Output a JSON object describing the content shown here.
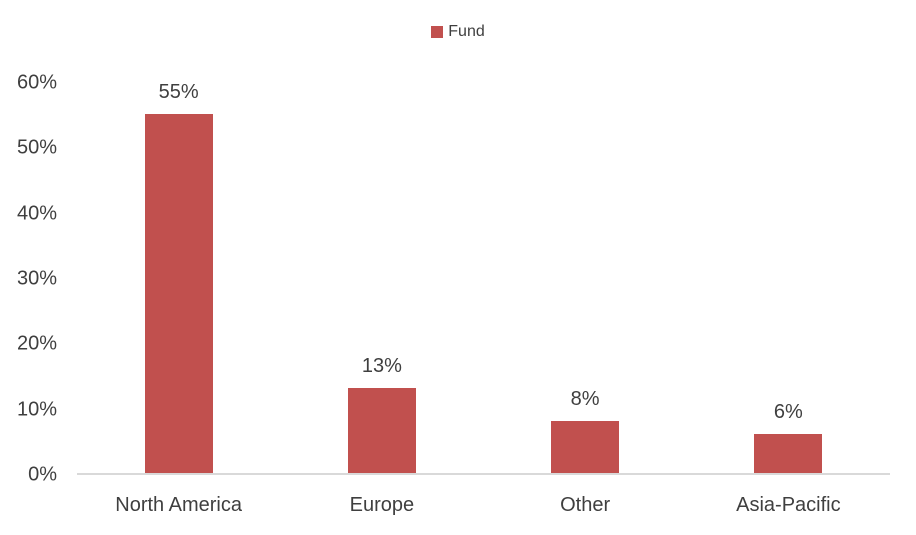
{
  "legend": {
    "label": "Fund"
  },
  "colors": {
    "bar": "#C1504E",
    "axis_line": "#D9D9D9",
    "text": "#3F3F3F"
  },
  "chart_data": {
    "type": "bar",
    "title": "",
    "xlabel": "",
    "ylabel": "",
    "categories": [
      "North America",
      "Europe",
      "Other",
      "Asia-Pacific"
    ],
    "series": [
      {
        "name": "Fund",
        "values": [
          55,
          13,
          8,
          6
        ]
      }
    ],
    "data_labels": [
      "55%",
      "13%",
      "8%",
      "6%"
    ],
    "ylim": [
      0,
      60
    ],
    "yticks": [
      0,
      10,
      20,
      30,
      40,
      50,
      60
    ],
    "ytick_labels": [
      "0%",
      "10%",
      "20%",
      "30%",
      "40%",
      "50%",
      "60%"
    ],
    "grid": false,
    "legend_position": "top-center"
  }
}
